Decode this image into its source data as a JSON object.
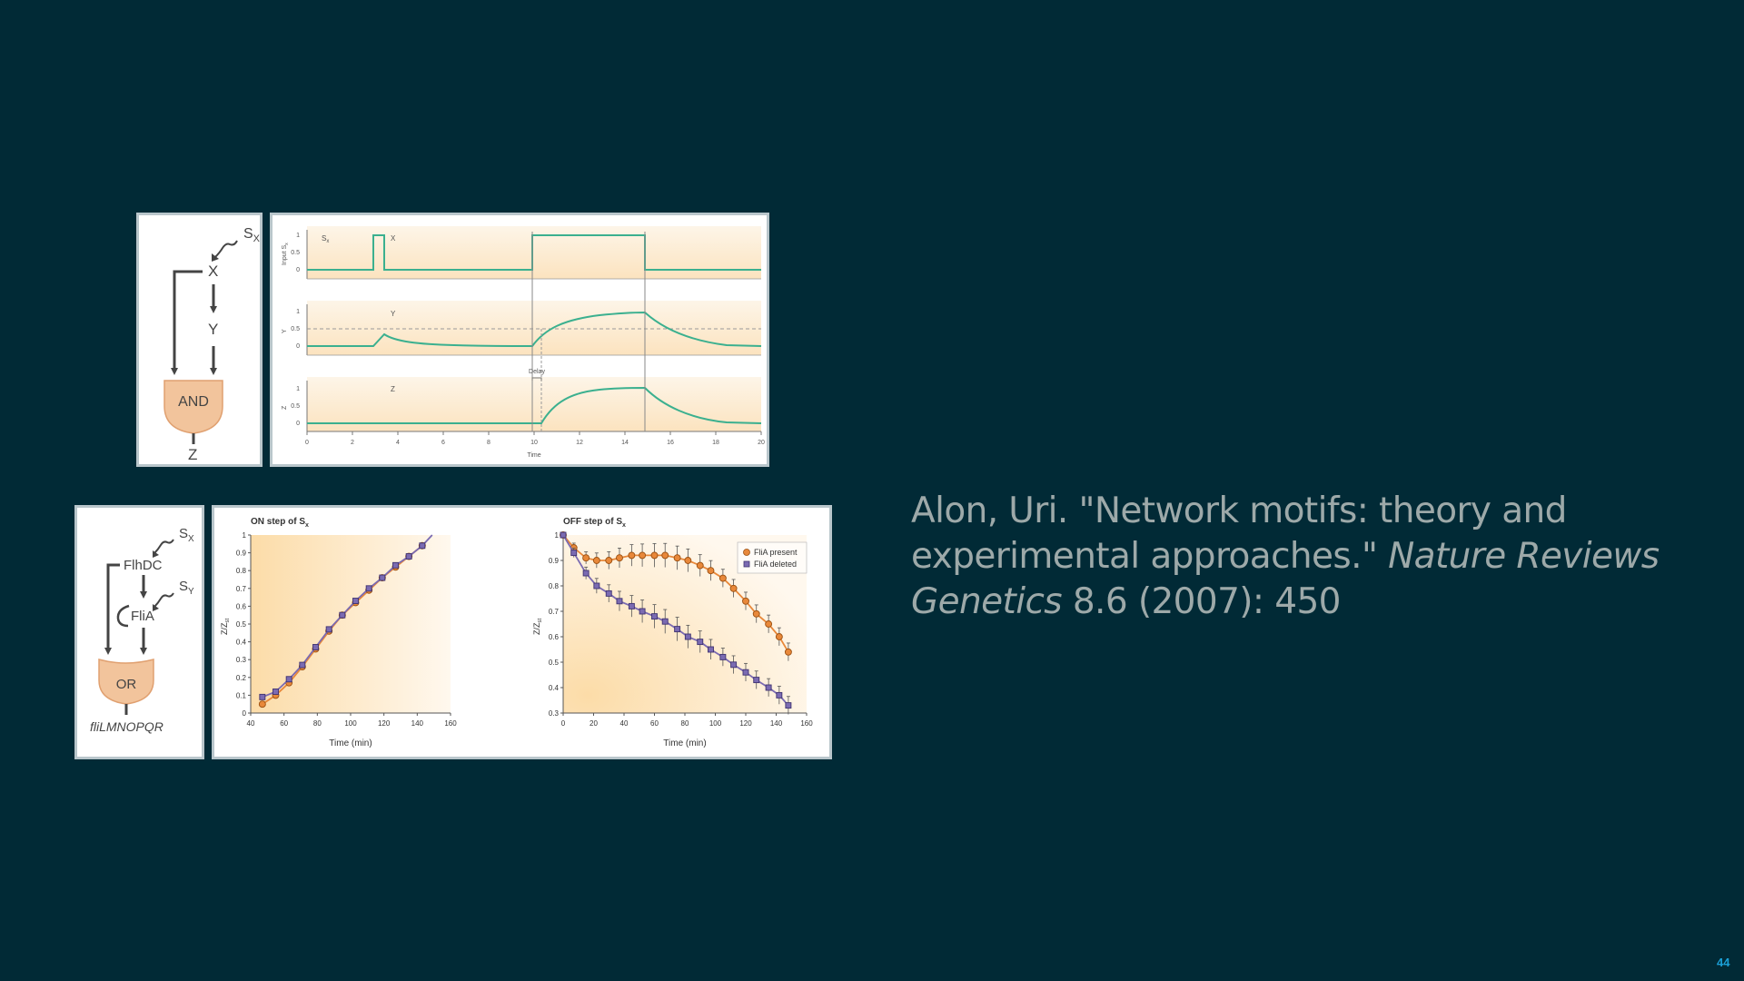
{
  "citation": {
    "part1": "Alon, Uri. \"Network motifs: theory and experimental approaches.\" ",
    "journal": "Nature Reviews Genetics",
    "part2": " 8.6 (2007): 450"
  },
  "page_number": "44",
  "top_circuit": {
    "signal": "S",
    "signal_sub": "X",
    "node_x": "X",
    "node_y": "Y",
    "gate": "AND",
    "output": "Z"
  },
  "top_plot": {
    "panels": [
      {
        "ylabel": "Input S",
        "ylabel_sub": "x",
        "ticks": [
          "1",
          "0.5",
          "0"
        ],
        "tag_s": "S",
        "tag_s_sub": "x",
        "tag": "X"
      },
      {
        "ylabel": "Y",
        "ticks": [
          "1",
          "0.5",
          "0"
        ],
        "tag": "Y"
      },
      {
        "ylabel": "Z",
        "ticks": [
          "1",
          "0.5",
          "0"
        ],
        "tag": "Z"
      }
    ],
    "delay_label": "Delay",
    "x_ticks": [
      "0",
      "2",
      "4",
      "6",
      "8",
      "10",
      "12",
      "14",
      "16",
      "18",
      "20"
    ],
    "xlabel": "Time"
  },
  "bottom_circuit": {
    "sx": "S",
    "sx_sub": "X",
    "sy": "S",
    "sy_sub": "Y",
    "node1": "FlhDC",
    "node2": "FliA",
    "gate": "OR",
    "output": "fliLMNOPQR"
  },
  "on_chart": {
    "title": "ON step of S",
    "title_sub": "x",
    "ylabel": "Z/Z",
    "ylabel_sub": "st",
    "y_ticks": [
      "1",
      "0.9",
      "0.8",
      "0.7",
      "0.6",
      "0.5",
      "0.4",
      "0.3",
      "0.2",
      "0.1",
      "0"
    ],
    "x_ticks": [
      "40",
      "60",
      "80",
      "100",
      "120",
      "140",
      "160"
    ],
    "xlabel": "Time (min)"
  },
  "off_chart": {
    "title": "OFF step of S",
    "title_sub": "x",
    "ylabel": "Z/Z",
    "ylabel_sub": "st",
    "y_ticks": [
      "1",
      "0.9",
      "0.8",
      "0.7",
      "0.6",
      "0.5",
      "0.4",
      "0.3"
    ],
    "x_ticks": [
      "0",
      "20",
      "40",
      "60",
      "80",
      "100",
      "120",
      "140",
      "160"
    ],
    "xlabel": "Time (min)",
    "legend": [
      "FliA present",
      "FliA deleted"
    ]
  },
  "colors": {
    "background": "#012a36",
    "trace": "#3bb08f",
    "present": "#e8883a",
    "deleted": "#7b6bb2",
    "gate": "#f2c49c"
  },
  "chart_data": [
    {
      "type": "line",
      "title": "ON step of Sx",
      "xlabel": "Time (min)",
      "ylabel": "Z/Zst",
      "xlim": [
        40,
        160
      ],
      "ylim": [
        0,
        1
      ],
      "series": [
        {
          "x": [
            47,
            55,
            63,
            71,
            79,
            87,
            95,
            103,
            111,
            119,
            127,
            135,
            143
          ],
          "values": [
            0.05,
            0.1,
            0.17,
            0.26,
            0.36,
            0.46,
            0.55,
            0.62,
            0.69,
            0.76,
            0.82,
            0.88,
            0.94
          ]
        },
        {
          "x": [
            47,
            55,
            63,
            71,
            79,
            87,
            95,
            103,
            111,
            119,
            127,
            135,
            143
          ],
          "values": [
            0.09,
            0.12,
            0.19,
            0.27,
            0.37,
            0.47,
            0.55,
            0.63,
            0.7,
            0.76,
            0.83,
            0.88,
            0.94
          ]
        }
      ]
    },
    {
      "type": "line",
      "title": "OFF step of Sx",
      "xlabel": "Time (min)",
      "ylabel": "Z/Zst",
      "xlim": [
        0,
        160
      ],
      "ylim": [
        0.3,
        1
      ],
      "legend": "top-right",
      "series": [
        {
          "name": "FliA present",
          "x": [
            0,
            7,
            15,
            22,
            30,
            37,
            45,
            52,
            60,
            67,
            75,
            82,
            90,
            97,
            105,
            112,
            120,
            127,
            135,
            142,
            148
          ],
          "values": [
            1,
            0.95,
            0.91,
            0.9,
            0.9,
            0.91,
            0.92,
            0.92,
            0.92,
            0.92,
            0.91,
            0.9,
            0.88,
            0.86,
            0.83,
            0.79,
            0.74,
            0.69,
            0.65,
            0.6,
            0.54
          ]
        },
        {
          "name": "FliA deleted",
          "x": [
            0,
            7,
            15,
            22,
            30,
            37,
            45,
            52,
            60,
            67,
            75,
            82,
            90,
            97,
            105,
            112,
            120,
            127,
            135,
            142,
            148
          ],
          "values": [
            1,
            0.93,
            0.85,
            0.8,
            0.77,
            0.74,
            0.72,
            0.7,
            0.68,
            0.66,
            0.63,
            0.6,
            0.58,
            0.55,
            0.52,
            0.49,
            0.46,
            0.43,
            0.4,
            0.37,
            0.33
          ]
        }
      ]
    }
  ]
}
